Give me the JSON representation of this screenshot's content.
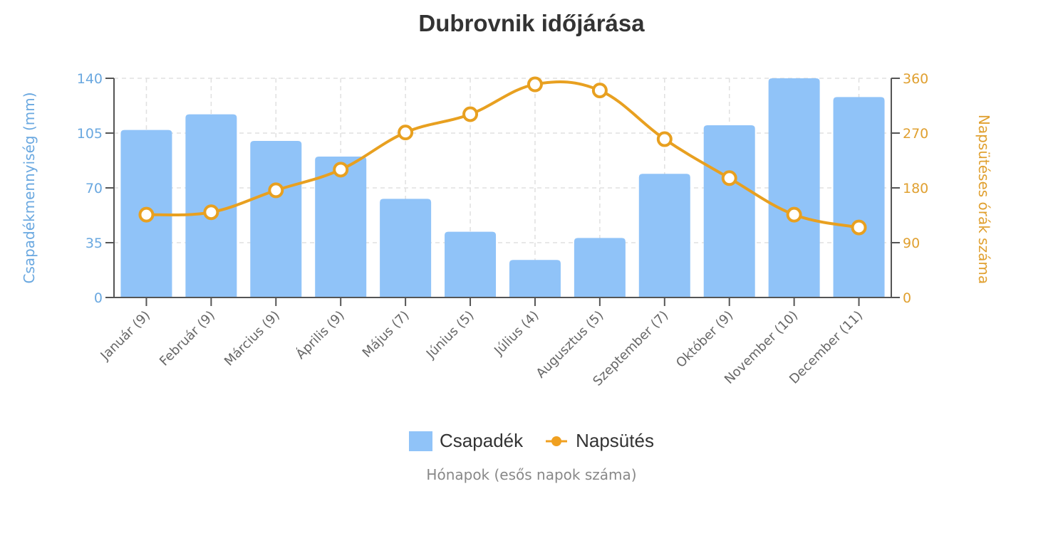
{
  "chart_data": {
    "type": "bar+line",
    "title": "Dubrovnik időjárása",
    "xlabel": "Hónapok (esős napok száma)",
    "categories": [
      "Január (9)",
      "Február (9)",
      "Március (9)",
      "Április (9)",
      "Május (7)",
      "Június (5)",
      "Július (4)",
      "Augusztus (5)",
      "Szeptember (7)",
      "Október (9)",
      "November (10)",
      "December (11)"
    ],
    "series": [
      {
        "name": "Csapadék",
        "type": "bar",
        "axis": "left",
        "color": "#90c3f8",
        "values": [
          107,
          117,
          100,
          90,
          63,
          42,
          24,
          38,
          79,
          110,
          140,
          128
        ]
      },
      {
        "name": "Napsütés",
        "type": "line",
        "axis": "right",
        "color": "#e8a020",
        "values": [
          136,
          140,
          176,
          210,
          271,
          301,
          350,
          340,
          260,
          196,
          136,
          115
        ]
      }
    ],
    "y_left": {
      "label": "Csapadékmennyiség (mm)",
      "range": [
        0,
        140
      ],
      "ticks": [
        0,
        35,
        70,
        105,
        140
      ],
      "color": "#6aa8e0"
    },
    "y_right": {
      "label": "Napsütéses órák száma",
      "range": [
        0,
        360
      ],
      "ticks": [
        0,
        90,
        180,
        270,
        360
      ],
      "color": "#e0a030"
    },
    "grid": true,
    "legend_position": "bottom"
  },
  "legend": {
    "bar_label": "Csapadék",
    "line_label": "Napsütés"
  }
}
